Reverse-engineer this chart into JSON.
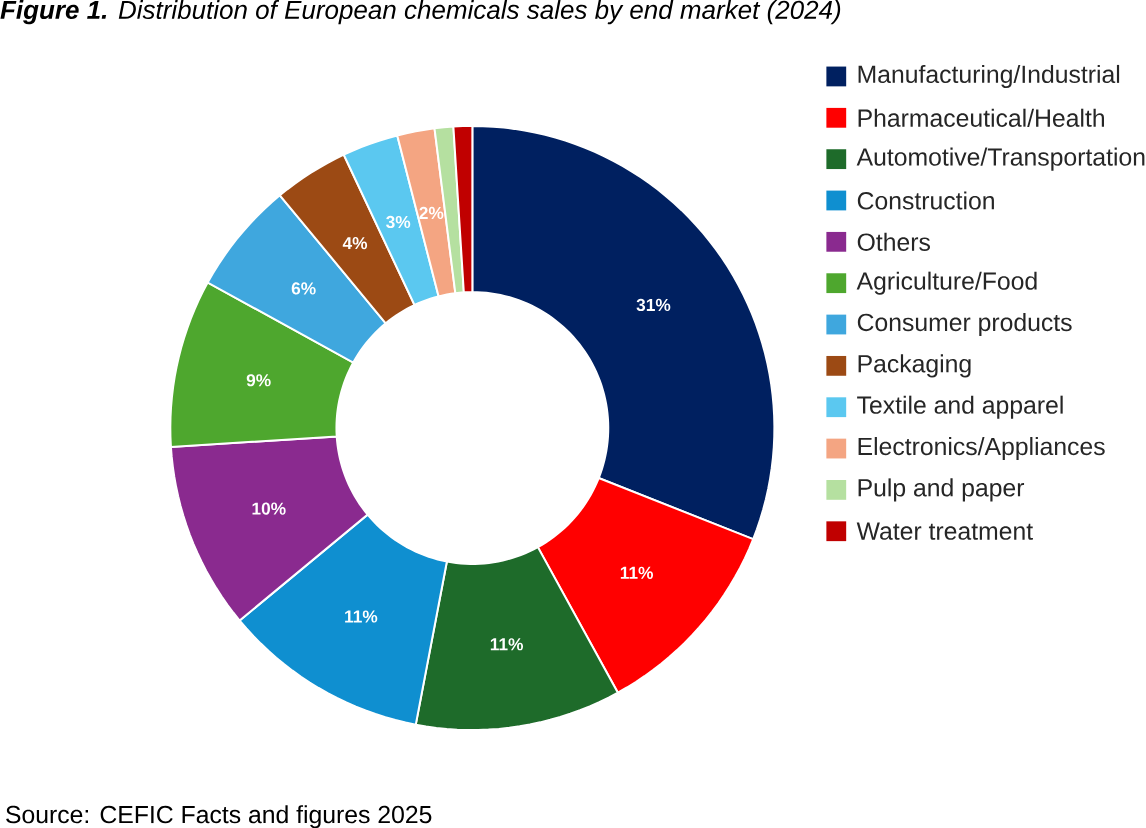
{
  "chart_data": {
    "type": "donut",
    "title": "**Figure 1.** Distribution of European chemicals sales by end market (2024)",
    "categories": [
      "Manufacturing/Industrial",
      "Pharmaceutical/Health",
      "Automotive/Transportation",
      "Construction",
      "Others",
      "Agriculture/Food",
      "Consumer products",
      "Packaging",
      "Textile and apparel",
      "Electronics/Appliances",
      "Pulp and paper",
      "Water treatment"
    ],
    "values": [
      31,
      11,
      11,
      11,
      10,
      9,
      6,
      4,
      3,
      2,
      1,
      1
    ],
    "value_labels": [
      "31%",
      "11%",
      "11%",
      "11%",
      "10%",
      "9%",
      "6%",
      "4%",
      "3%",
      "2%",
      null,
      null
    ],
    "colors": [
      "#002060",
      "#ff0000",
      "#1e6b2a",
      "#0f8fd0",
      "#8a2a8f",
      "#4ea72e",
      "#3fa7de",
      "#9c4a14",
      "#5bc8f0",
      "#f4a582",
      "#b5e0a0",
      "#c00000"
    ],
    "legend": "right",
    "annotations": [
      "Source: CEFIC Facts and figures 2025"
    ]
  }
}
